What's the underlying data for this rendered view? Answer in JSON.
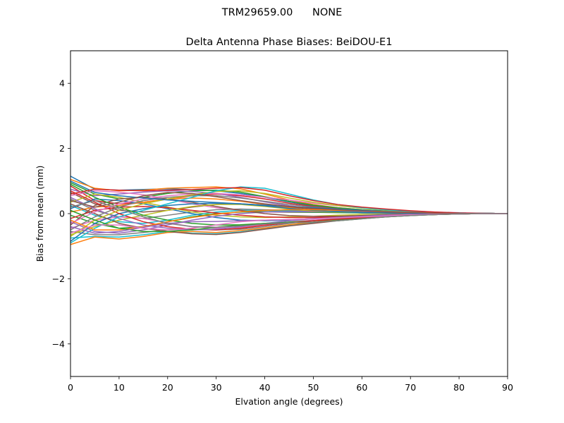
{
  "figure": {
    "suptitle": "TRM29659.00      NONE"
  },
  "chart_data": {
    "type": "line",
    "title": "Delta Antenna Phase Biases: BeiDOU-E1",
    "xlabel": "Elvation angle (degrees)",
    "ylabel": "Bias from mean (mm)",
    "xlim": [
      0,
      90
    ],
    "ylim": [
      -5,
      5
    ],
    "xticks": [
      0,
      10,
      20,
      30,
      40,
      50,
      60,
      70,
      80,
      90
    ],
    "yticks": [
      -4,
      -2,
      0,
      2,
      4
    ],
    "ytick_labels": [
      "−4",
      "−2",
      "0",
      "2",
      "4"
    ],
    "grid": false,
    "legend": "none",
    "x": [
      0,
      5,
      10,
      15,
      20,
      25,
      30,
      35,
      40,
      45,
      50,
      55,
      60,
      65,
      70,
      75,
      80,
      85,
      90
    ],
    "colors": [
      "#1f77b4",
      "#ff7f0e",
      "#2ca02c",
      "#d62728",
      "#9467bd",
      "#8c564b",
      "#e377c2",
      "#7f7f7f",
      "#bcbd22",
      "#17becf"
    ],
    "series": [
      {
        "values": [
          1.15,
          0.75,
          0.72,
          0.74,
          0.76,
          0.74,
          0.7,
          0.62,
          0.5,
          0.36,
          0.24,
          0.16,
          0.1,
          0.07,
          0.05,
          0.03,
          0.02,
          0.01,
          0.0
        ]
      },
      {
        "values": [
          1.05,
          0.78,
          0.7,
          0.72,
          0.78,
          0.8,
          0.82,
          0.76,
          0.6,
          0.42,
          0.28,
          0.18,
          0.12,
          0.08,
          0.05,
          0.03,
          0.02,
          0.01,
          0.0
        ]
      },
      {
        "values": [
          0.95,
          0.6,
          0.45,
          0.5,
          0.62,
          0.7,
          0.72,
          0.66,
          0.52,
          0.38,
          0.26,
          0.18,
          0.12,
          0.08,
          0.05,
          0.03,
          0.02,
          0.01,
          0.0
        ]
      },
      {
        "values": [
          0.85,
          0.4,
          0.3,
          0.35,
          0.45,
          0.55,
          0.6,
          0.55,
          0.45,
          0.32,
          0.22,
          0.15,
          0.1,
          0.07,
          0.05,
          0.03,
          0.02,
          0.01,
          0.0
        ]
      },
      {
        "values": [
          0.75,
          0.55,
          0.6,
          0.66,
          0.7,
          0.68,
          0.62,
          0.5,
          0.36,
          0.24,
          0.16,
          0.12,
          0.09,
          0.07,
          0.05,
          0.03,
          0.02,
          0.01,
          0.0
        ]
      },
      {
        "values": [
          0.65,
          0.3,
          0.1,
          0.05,
          0.1,
          0.2,
          0.28,
          0.3,
          0.26,
          0.2,
          0.14,
          0.1,
          0.08,
          0.06,
          0.04,
          0.03,
          0.02,
          0.01,
          0.0
        ]
      },
      {
        "values": [
          0.55,
          0.7,
          0.66,
          0.58,
          0.45,
          0.3,
          0.18,
          0.1,
          0.05,
          0.04,
          0.04,
          0.04,
          0.03,
          0.03,
          0.02,
          0.02,
          0.01,
          0.01,
          0.0
        ]
      },
      {
        "values": [
          0.45,
          0.1,
          -0.1,
          -0.15,
          -0.05,
          0.05,
          0.12,
          0.14,
          0.12,
          0.1,
          0.08,
          0.07,
          0.06,
          0.05,
          0.04,
          0.03,
          0.02,
          0.01,
          0.0
        ]
      },
      {
        "values": [
          0.35,
          0.6,
          0.5,
          0.35,
          0.2,
          0.05,
          -0.05,
          -0.1,
          -0.12,
          -0.1,
          -0.08,
          -0.05,
          -0.03,
          -0.02,
          -0.01,
          0.0,
          0.0,
          0.0,
          0.0
        ]
      },
      {
        "values": [
          0.25,
          -0.05,
          -0.25,
          -0.3,
          -0.2,
          -0.05,
          0.05,
          0.1,
          0.1,
          0.08,
          0.06,
          0.05,
          0.04,
          0.03,
          0.02,
          0.02,
          0.01,
          0.01,
          0.0
        ]
      },
      {
        "values": [
          0.15,
          0.45,
          0.4,
          0.3,
          0.15,
          0.0,
          -0.12,
          -0.2,
          -0.22,
          -0.2,
          -0.15,
          -0.1,
          -0.06,
          -0.03,
          -0.02,
          -0.01,
          0.0,
          0.0,
          0.0
        ]
      },
      {
        "values": [
          0.05,
          0.2,
          0.25,
          0.35,
          0.45,
          0.48,
          0.45,
          0.38,
          0.28,
          0.18,
          0.1,
          0.05,
          0.02,
          0.01,
          0.0,
          0.0,
          0.0,
          0.0,
          0.0
        ]
      },
      {
        "values": [
          -0.05,
          -0.3,
          -0.45,
          -0.4,
          -0.25,
          -0.1,
          0.0,
          0.05,
          0.06,
          0.05,
          0.04,
          0.03,
          0.02,
          0.02,
          0.01,
          0.01,
          0.0,
          0.0,
          0.0
        ]
      },
      {
        "values": [
          -0.15,
          0.1,
          0.2,
          0.22,
          0.18,
          0.1,
          0.02,
          -0.05,
          -0.1,
          -0.12,
          -0.12,
          -0.1,
          -0.07,
          -0.04,
          -0.02,
          -0.01,
          0.0,
          0.0,
          0.0
        ]
      },
      {
        "values": [
          -0.25,
          -0.55,
          -0.6,
          -0.5,
          -0.35,
          -0.2,
          -0.08,
          0.0,
          0.05,
          0.06,
          0.06,
          0.05,
          0.04,
          0.03,
          0.02,
          0.01,
          0.01,
          0.0,
          0.0
        ]
      },
      {
        "values": [
          -0.35,
          0.25,
          0.45,
          0.5,
          0.45,
          0.35,
          0.22,
          0.1,
          0.0,
          -0.06,
          -0.08,
          -0.08,
          -0.06,
          -0.04,
          -0.02,
          -0.01,
          0.0,
          0.0,
          0.0
        ]
      },
      {
        "values": [
          -0.45,
          -0.2,
          -0.1,
          -0.15,
          -0.28,
          -0.4,
          -0.45,
          -0.42,
          -0.34,
          -0.26,
          -0.2,
          -0.14,
          -0.09,
          -0.05,
          -0.03,
          -0.02,
          -0.01,
          0.0,
          0.0
        ]
      },
      {
        "values": [
          -0.55,
          -0.65,
          -0.65,
          -0.58,
          -0.5,
          -0.48,
          -0.5,
          -0.48,
          -0.4,
          -0.3,
          -0.22,
          -0.15,
          -0.1,
          -0.06,
          -0.04,
          -0.02,
          -0.01,
          0.0,
          0.0
        ]
      },
      {
        "values": [
          -0.65,
          -0.4,
          -0.2,
          -0.05,
          0.1,
          0.22,
          0.28,
          0.28,
          0.22,
          0.14,
          0.08,
          0.05,
          0.03,
          0.02,
          0.01,
          0.01,
          0.0,
          0.0,
          0.0
        ]
      },
      {
        "values": [
          -0.75,
          -0.7,
          -0.72,
          -0.65,
          -0.55,
          -0.6,
          -0.62,
          -0.56,
          -0.46,
          -0.36,
          -0.28,
          -0.2,
          -0.14,
          -0.09,
          -0.05,
          -0.03,
          -0.01,
          0.0,
          0.0
        ]
      },
      {
        "values": [
          -0.85,
          -0.3,
          0.0,
          0.15,
          0.25,
          0.3,
          0.32,
          0.3,
          0.24,
          0.16,
          0.1,
          0.06,
          0.03,
          0.02,
          0.01,
          0.0,
          0.0,
          0.0,
          0.0
        ]
      },
      {
        "values": [
          -0.95,
          -0.72,
          -0.78,
          -0.7,
          -0.58,
          -0.55,
          -0.58,
          -0.52,
          -0.44,
          -0.34,
          -0.26,
          -0.18,
          -0.12,
          -0.08,
          -0.05,
          -0.03,
          -0.01,
          0.0,
          0.0
        ]
      },
      {
        "values": [
          0.9,
          0.5,
          0.2,
          -0.05,
          -0.2,
          -0.3,
          -0.35,
          -0.34,
          -0.3,
          -0.26,
          -0.22,
          -0.18,
          -0.12,
          -0.07,
          -0.04,
          -0.02,
          -0.01,
          0.0,
          0.0
        ]
      },
      {
        "values": [
          0.7,
          0.35,
          0.0,
          -0.25,
          -0.4,
          -0.48,
          -0.5,
          -0.45,
          -0.36,
          -0.28,
          -0.22,
          -0.17,
          -0.12,
          -0.08,
          -0.05,
          -0.03,
          -0.01,
          0.0,
          0.0
        ]
      },
      {
        "values": [
          0.5,
          0.15,
          -0.15,
          -0.35,
          -0.45,
          -0.5,
          -0.48,
          -0.4,
          -0.3,
          -0.22,
          -0.16,
          -0.12,
          -0.08,
          -0.05,
          -0.03,
          -0.02,
          -0.01,
          0.0,
          0.0
        ]
      },
      {
        "values": [
          0.3,
          0.0,
          -0.3,
          -0.45,
          -0.55,
          -0.62,
          -0.64,
          -0.58,
          -0.48,
          -0.38,
          -0.3,
          -0.22,
          -0.15,
          -0.1,
          -0.06,
          -0.03,
          -0.01,
          0.0,
          0.0
        ]
      },
      {
        "values": [
          -0.3,
          0.05,
          0.3,
          0.45,
          0.55,
          0.6,
          0.62,
          0.58,
          0.5,
          0.42,
          0.32,
          0.24,
          0.17,
          0.12,
          0.08,
          0.05,
          0.03,
          0.01,
          0.0
        ]
      },
      {
        "values": [
          -0.5,
          -0.1,
          0.2,
          0.4,
          0.5,
          0.55,
          0.55,
          0.48,
          0.38,
          0.28,
          0.2,
          0.14,
          0.1,
          0.07,
          0.05,
          0.03,
          0.02,
          0.01,
          0.0
        ]
      },
      {
        "values": [
          -0.7,
          -0.2,
          0.1,
          0.3,
          0.45,
          0.58,
          0.68,
          0.7,
          0.62,
          0.48,
          0.35,
          0.25,
          0.17,
          0.11,
          0.07,
          0.04,
          0.02,
          0.01,
          0.0
        ]
      },
      {
        "values": [
          -0.9,
          -0.45,
          -0.1,
          0.1,
          0.3,
          0.5,
          0.7,
          0.82,
          0.78,
          0.6,
          0.42,
          0.28,
          0.18,
          0.12,
          0.07,
          0.04,
          0.02,
          0.01,
          0.0
        ]
      },
      {
        "values": [
          1.0,
          0.65,
          0.55,
          0.48,
          0.42,
          0.38,
          0.34,
          0.3,
          0.26,
          0.22,
          0.18,
          0.14,
          0.1,
          0.07,
          0.05,
          0.03,
          0.02,
          0.01,
          0.0
        ]
      },
      {
        "values": [
          -0.2,
          -0.5,
          -0.5,
          -0.4,
          -0.25,
          -0.12,
          -0.02,
          0.06,
          0.1,
          0.12,
          0.12,
          0.1,
          0.08,
          0.06,
          0.04,
          0.02,
          0.01,
          0.0,
          0.0
        ]
      },
      {
        "values": [
          0.1,
          -0.2,
          -0.45,
          -0.55,
          -0.55,
          -0.5,
          -0.42,
          -0.35,
          -0.3,
          -0.28,
          -0.26,
          -0.22,
          -0.16,
          -0.1,
          -0.06,
          -0.03,
          -0.01,
          0.0,
          0.0
        ]
      },
      {
        "values": [
          0.6,
          0.75,
          0.72,
          0.7,
          0.72,
          0.74,
          0.78,
          0.8,
          0.72,
          0.55,
          0.4,
          0.28,
          0.2,
          0.14,
          0.09,
          0.05,
          0.02,
          0.01,
          0.0
        ]
      },
      {
        "values": [
          -0.4,
          -0.6,
          -0.55,
          -0.42,
          -0.3,
          -0.25,
          -0.24,
          -0.22,
          -0.2,
          -0.18,
          -0.16,
          -0.12,
          -0.08,
          -0.05,
          -0.03,
          -0.02,
          -0.01,
          0.0,
          0.0
        ]
      },
      {
        "values": [
          0.4,
          0.2,
          0.35,
          0.55,
          0.65,
          0.62,
          0.52,
          0.4,
          0.3,
          0.22,
          0.16,
          0.12,
          0.08,
          0.05,
          0.03,
          0.02,
          0.01,
          0.0,
          0.0
        ]
      },
      {
        "values": [
          -0.6,
          -0.35,
          -0.35,
          -0.45,
          -0.5,
          -0.45,
          -0.35,
          -0.25,
          -0.2,
          -0.18,
          -0.16,
          -0.13,
          -0.1,
          -0.07,
          -0.04,
          -0.02,
          -0.01,
          0.0,
          0.0
        ]
      },
      {
        "values": [
          0.2,
          0.4,
          0.15,
          -0.1,
          -0.3,
          -0.4,
          -0.42,
          -0.38,
          -0.32,
          -0.28,
          -0.26,
          -0.22,
          -0.16,
          -0.1,
          -0.06,
          -0.03,
          -0.01,
          0.0,
          0.0
        ]
      }
    ]
  }
}
